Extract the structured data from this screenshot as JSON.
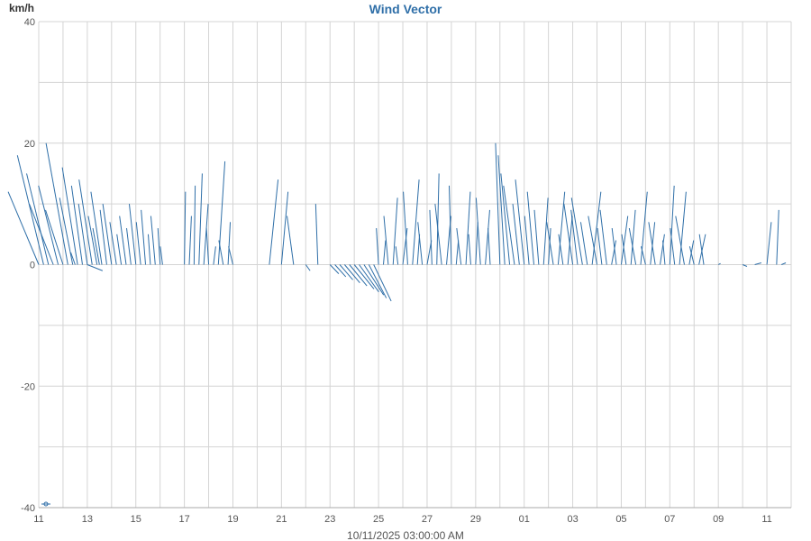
{
  "chart_data": {
    "type": "vector",
    "title": "Wind Vector",
    "ylabel": "km/h",
    "xlabel": "10/11/2025 03:00:00 AM",
    "ylim": [
      -40,
      40
    ],
    "yticks": [
      -40,
      -20,
      0,
      20,
      40
    ],
    "xticks": [
      "11",
      "13",
      "15",
      "17",
      "19",
      "21",
      "23",
      "25",
      "27",
      "29",
      "01",
      "03",
      "05",
      "07",
      "09",
      "11"
    ],
    "x_range_days": [
      0,
      31
    ],
    "colors": {
      "vector": "#2f6fa8",
      "title": "#2f6fa8",
      "grid": "#d4d4d4"
    },
    "grid": true,
    "legend": "none",
    "series": [
      {
        "note_units": "x = days from 11 (first tick), u/v = wind components in km/h",
        "vectors": [
          [
            0.0,
            -14,
            12
          ],
          [
            0.2,
            -12,
            18
          ],
          [
            0.4,
            -10,
            15
          ],
          [
            0.6,
            -11,
            10
          ],
          [
            0.8,
            -9,
            13
          ],
          [
            1.0,
            -8,
            9
          ],
          [
            1.2,
            -10,
            20
          ],
          [
            1.4,
            -6,
            11
          ],
          [
            1.5,
            -2,
            2
          ],
          [
            1.6,
            -7,
            16
          ],
          [
            1.8,
            -5,
            13
          ],
          [
            2.0,
            -4,
            10
          ],
          [
            2.0,
            7,
            -1
          ],
          [
            2.2,
            -6,
            14
          ],
          [
            2.4,
            -4,
            8
          ],
          [
            2.5,
            -3,
            6
          ],
          [
            2.6,
            -5,
            12
          ],
          [
            2.8,
            -3,
            9
          ],
          [
            3.0,
            -4,
            10
          ],
          [
            3.2,
            -3,
            7
          ],
          [
            3.4,
            -2,
            5
          ],
          [
            3.6,
            -3,
            8
          ],
          [
            3.8,
            -2,
            6
          ],
          [
            4.0,
            -3,
            10
          ],
          [
            4.2,
            -2,
            7
          ],
          [
            4.4,
            -2,
            9
          ],
          [
            4.6,
            -1,
            5
          ],
          [
            4.8,
            -2,
            8
          ],
          [
            5.0,
            -1,
            6
          ],
          [
            5.1,
            -1,
            3
          ],
          [
            6.0,
            0.5,
            12
          ],
          [
            6.2,
            1,
            8
          ],
          [
            6.4,
            0.5,
            13
          ],
          [
            6.6,
            1.5,
            15
          ],
          [
            6.8,
            2,
            10
          ],
          [
            7.0,
            -1,
            6
          ],
          [
            7.2,
            1,
            3
          ],
          [
            7.4,
            3,
            17
          ],
          [
            7.6,
            -2,
            4
          ],
          [
            7.8,
            1,
            7
          ],
          [
            8.0,
            -2,
            3
          ],
          [
            9.5,
            4,
            14
          ],
          [
            10.0,
            3,
            12
          ],
          [
            10.5,
            -3,
            8
          ],
          [
            11.0,
            2,
            -1
          ],
          [
            11.5,
            -1,
            10
          ],
          [
            12.0,
            4,
            -1.5
          ],
          [
            12.2,
            5,
            -2
          ],
          [
            12.4,
            6,
            -2.5
          ],
          [
            12.6,
            7,
            -3
          ],
          [
            12.8,
            8,
            -3.5
          ],
          [
            13.0,
            9,
            -4
          ],
          [
            13.2,
            9,
            -4.5
          ],
          [
            13.4,
            9,
            -5
          ],
          [
            13.6,
            8,
            -5.5
          ],
          [
            13.8,
            8,
            -6
          ],
          [
            14.0,
            -1,
            6
          ],
          [
            14.2,
            1,
            4
          ],
          [
            14.4,
            -2,
            8
          ],
          [
            14.6,
            2,
            11
          ],
          [
            14.8,
            -1,
            3
          ],
          [
            15.0,
            2,
            6
          ],
          [
            15.2,
            -2,
            12
          ],
          [
            15.4,
            3,
            14
          ],
          [
            15.6,
            1,
            5
          ],
          [
            15.8,
            -2,
            7
          ],
          [
            16.0,
            2,
            4
          ],
          [
            16.2,
            -1,
            9
          ],
          [
            16.4,
            1,
            15
          ],
          [
            16.6,
            -3,
            10
          ],
          [
            16.8,
            2,
            8
          ],
          [
            17.0,
            -1,
            13
          ],
          [
            17.2,
            1,
            4
          ],
          [
            17.4,
            -2,
            6
          ],
          [
            17.6,
            2,
            12
          ],
          [
            17.8,
            -1,
            5
          ],
          [
            18.0,
            1,
            7
          ],
          [
            18.2,
            -2,
            11
          ],
          [
            18.4,
            2,
            9
          ],
          [
            18.6,
            -1,
            6
          ],
          [
            19.0,
            -2,
            20
          ],
          [
            19.2,
            -3,
            18
          ],
          [
            19.4,
            -4,
            15
          ],
          [
            19.6,
            -5,
            13
          ],
          [
            19.8,
            -3,
            10
          ],
          [
            20.0,
            -4,
            14
          ],
          [
            20.2,
            -2,
            8
          ],
          [
            20.4,
            -3,
            12
          ],
          [
            20.6,
            -2,
            9
          ],
          [
            20.8,
            2,
            11
          ],
          [
            21.0,
            1,
            6
          ],
          [
            21.2,
            -3,
            7
          ],
          [
            21.4,
            3,
            12
          ],
          [
            21.6,
            -2,
            5
          ],
          [
            21.8,
            2,
            8
          ],
          [
            22.0,
            -4,
            10
          ],
          [
            22.2,
            -3,
            9
          ],
          [
            22.4,
            -5,
            11
          ],
          [
            22.6,
            -3,
            7
          ],
          [
            22.8,
            4,
            12
          ],
          [
            23.0,
            -4,
            8
          ],
          [
            23.2,
            -2,
            6
          ],
          [
            23.4,
            -3,
            9
          ],
          [
            23.6,
            2,
            4
          ],
          [
            23.8,
            -2,
            6
          ],
          [
            24.0,
            3,
            8
          ],
          [
            24.2,
            -2,
            5
          ],
          [
            24.4,
            2,
            9
          ],
          [
            24.6,
            -3,
            6
          ],
          [
            24.8,
            3,
            12
          ],
          [
            25.0,
            -2,
            3
          ],
          [
            25.2,
            2,
            7
          ],
          [
            25.4,
            -3,
            7
          ],
          [
            25.6,
            2,
            5
          ],
          [
            25.8,
            -1,
            4
          ],
          [
            26.0,
            2,
            13
          ],
          [
            26.2,
            -2,
            6
          ],
          [
            26.4,
            3,
            12
          ],
          [
            26.6,
            -4,
            8
          ],
          [
            26.8,
            2,
            4
          ],
          [
            27.0,
            -2,
            3
          ],
          [
            27.2,
            3,
            5
          ],
          [
            27.4,
            -2,
            5
          ],
          [
            28.0,
            1,
            0.2
          ],
          [
            29.0,
            2,
            -0.3
          ],
          [
            29.5,
            3,
            0.3
          ],
          [
            30.0,
            2,
            7
          ],
          [
            30.4,
            1,
            9
          ],
          [
            30.6,
            2,
            0.3
          ]
        ]
      }
    ]
  }
}
